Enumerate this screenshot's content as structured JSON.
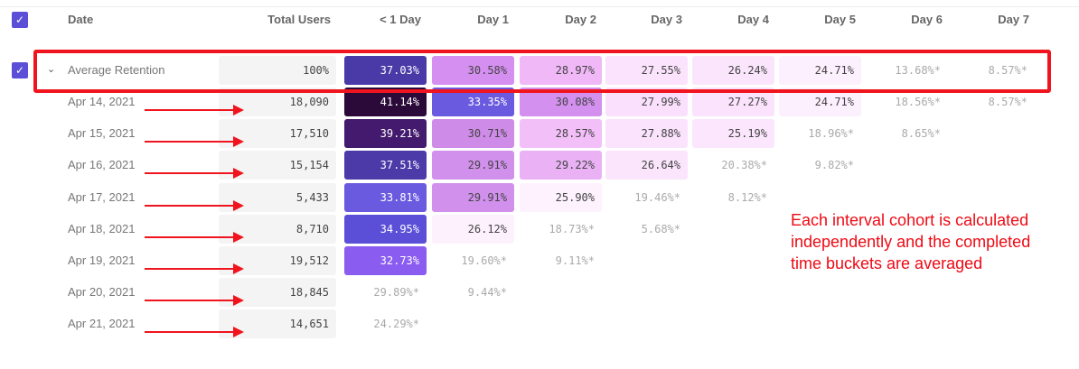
{
  "columns": [
    "Date",
    "Total Users",
    "< 1 Day",
    "Day 1",
    "Day 2",
    "Day 3",
    "Day 4",
    "Day 5",
    "Day 6",
    "Day 7"
  ],
  "average": {
    "label": "Average Retention",
    "total": "100%",
    "cells": [
      {
        "v": "37.03%",
        "bg": "#4a3aa8",
        "fg": "#fff"
      },
      {
        "v": "30.58%",
        "bg": "#d58ff0"
      },
      {
        "v": "28.97%",
        "bg": "#f1b8f7"
      },
      {
        "v": "27.55%",
        "bg": "#fbe3fd"
      },
      {
        "v": "26.24%",
        "bg": "#fbe5fd"
      },
      {
        "v": "24.71%",
        "bg": "#fdf0fe"
      },
      {
        "v": "13.68%*"
      },
      {
        "v": "8.57%*"
      }
    ]
  },
  "rows": [
    {
      "date": "Apr 14, 2021",
      "total": "18,090",
      "cells": [
        {
          "v": "41.14%",
          "bg": "#2b0a3a",
          "fg": "#fff"
        },
        {
          "v": "33.35%",
          "bg": "#6a5ae0",
          "fg": "#fff"
        },
        {
          "v": "30.08%",
          "bg": "#d390ef"
        },
        {
          "v": "27.99%",
          "bg": "#fbe0fd"
        },
        {
          "v": "27.27%",
          "bg": "#fbe3fd"
        },
        {
          "v": "24.71%",
          "bg": "#fdf0fe"
        },
        {
          "v": "18.56%*"
        },
        {
          "v": "8.57%*"
        }
      ]
    },
    {
      "date": "Apr 15, 2021",
      "total": "17,510",
      "cells": [
        {
          "v": "39.21%",
          "bg": "#431a6e",
          "fg": "#fff"
        },
        {
          "v": "30.71%",
          "bg": "#cf8be8"
        },
        {
          "v": "28.57%",
          "bg": "#f3bff8"
        },
        {
          "v": "27.88%",
          "bg": "#fbe2fd"
        },
        {
          "v": "25.19%",
          "bg": "#fbe6fd"
        },
        {
          "v": "18.96%*"
        },
        {
          "v": "8.65%*"
        }
      ]
    },
    {
      "date": "Apr 16, 2021",
      "total": "15,154",
      "cells": [
        {
          "v": "37.51%",
          "bg": "#4b3aa8",
          "fg": "#fff"
        },
        {
          "v": "29.91%",
          "bg": "#d090ec"
        },
        {
          "v": "29.22%",
          "bg": "#eab2f5"
        },
        {
          "v": "26.64%",
          "bg": "#fbe5fd"
        },
        {
          "v": "20.38%*"
        },
        {
          "v": "9.82%*"
        }
      ]
    },
    {
      "date": "Apr 17, 2021",
      "total": "5,433",
      "cells": [
        {
          "v": "33.81%",
          "bg": "#6a5ae0",
          "fg": "#fff"
        },
        {
          "v": "29.91%",
          "bg": "#d090ec"
        },
        {
          "v": "25.90%",
          "bg": "#fdf2fe"
        },
        {
          "v": "19.46%*"
        },
        {
          "v": "8.12%*"
        }
      ]
    },
    {
      "date": "Apr 18, 2021",
      "total": "8,710",
      "cells": [
        {
          "v": "34.95%",
          "bg": "#5b4fd8",
          "fg": "#fff"
        },
        {
          "v": "26.12%",
          "bg": "#fdf1fe"
        },
        {
          "v": "18.73%*"
        },
        {
          "v": "5.68%*"
        }
      ]
    },
    {
      "date": "Apr 19, 2021",
      "total": "19,512",
      "cells": [
        {
          "v": "32.73%",
          "bg": "#8b5cf0",
          "fg": "#fff"
        },
        {
          "v": "19.60%*"
        },
        {
          "v": "9.11%*"
        }
      ]
    },
    {
      "date": "Apr 20, 2021",
      "total": "18,845",
      "cells": [
        {
          "v": "29.89%*"
        },
        {
          "v": "9.44%*"
        }
      ]
    },
    {
      "date": "Apr 21, 2021",
      "total": "14,651",
      "cells": [
        {
          "v": "24.29%*"
        }
      ]
    }
  ],
  "annotation": "Each interval cohort is calculated independently and the completed time buckets are averaged",
  "accent": "#5b4fd8",
  "highlight": "#f0141e"
}
